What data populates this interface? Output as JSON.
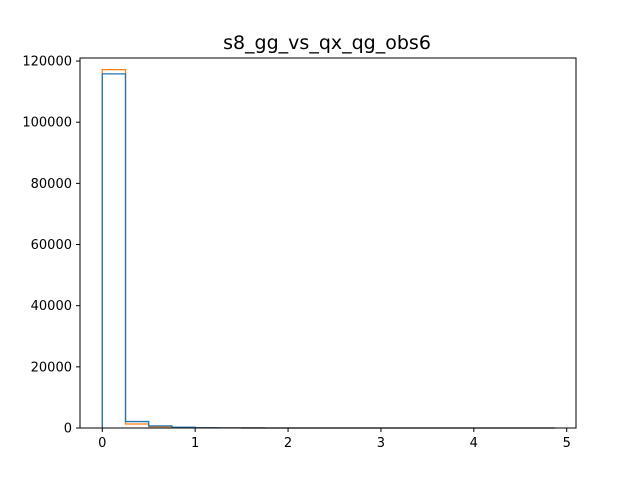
{
  "chart_data": {
    "type": "histogram",
    "title": "s8_gg_vs_qx_qg_obs6",
    "xlabel": "",
    "ylabel": "",
    "xlim": [
      -0.24,
      5.1
    ],
    "ylim": [
      0,
      121000
    ],
    "x_ticks": [
      "0",
      "1",
      "2",
      "3",
      "4",
      "5"
    ],
    "y_ticks": [
      "0",
      "20000",
      "40000",
      "60000",
      "80000",
      "100000",
      "120000"
    ],
    "bin_edges": [
      0,
      0.25,
      0.5,
      0.75,
      1.0,
      1.25,
      1.5,
      1.75,
      2.0,
      2.25,
      2.5,
      2.75,
      3.0,
      3.25,
      3.5,
      3.75,
      4.0,
      4.25,
      4.5,
      4.75,
      4.87
    ],
    "series": [
      {
        "color": "#ff7f0e",
        "values": [
          117200,
          1300,
          450,
          150,
          60,
          30,
          15,
          10,
          6,
          4,
          3,
          2,
          2,
          1,
          1,
          1,
          1,
          0,
          0,
          1
        ]
      },
      {
        "color": "#1f77b4",
        "values": [
          115800,
          2100,
          700,
          250,
          90,
          40,
          20,
          12,
          8,
          5,
          4,
          3,
          2,
          1,
          1,
          1,
          1,
          1,
          0,
          1
        ]
      }
    ],
    "grid": false,
    "legend": "none"
  }
}
